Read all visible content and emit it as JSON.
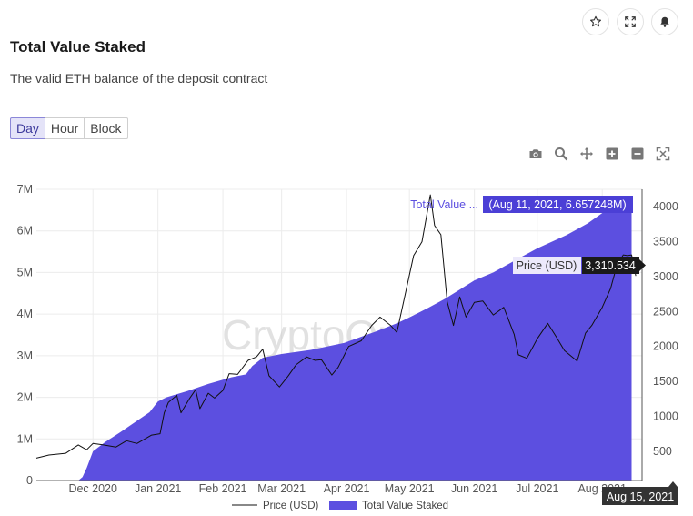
{
  "title": "Total Value Staked",
  "subtitle": "The valid ETH balance of the deposit contract",
  "resolution_tabs": [
    {
      "label": "Day",
      "active": true
    },
    {
      "label": "Hour",
      "active": false
    },
    {
      "label": "Block",
      "active": false
    }
  ],
  "top_icons": [
    "star-icon",
    "expand-icon",
    "bell-icon"
  ],
  "modebar_icons": [
    "camera-icon",
    "zoom-icon",
    "pan-icon",
    "zoom-in-icon",
    "zoom-out-icon",
    "autoscale-icon"
  ],
  "watermark": "CryptoQuant",
  "colors": {
    "area": "#5c4fe0",
    "line": "#111111",
    "accent": "#4b3fd6",
    "tooltip_dark": "#1a1a1a"
  },
  "chart_data": {
    "type": "area",
    "x_ticks": [
      "Dec 2020",
      "Jan 2021",
      "Feb 2021",
      "Mar 2021",
      "Apr 2021",
      "May 2021",
      "Jun 2021",
      "Jul 2021",
      "Aug 2021"
    ],
    "y_left": {
      "ticks": [
        "0",
        "1M",
        "2M",
        "3M",
        "4M",
        "5M",
        "6M",
        "7M"
      ],
      "range": [
        0,
        7000000
      ]
    },
    "y_right": {
      "ticks": [
        "500",
        "1000",
        "1500",
        "2000",
        "2500",
        "3000",
        "3500",
        "4000"
      ],
      "range": [
        80,
        4250
      ]
    },
    "x_range": [
      "2020-11-04",
      "2021-08-20"
    ],
    "series": [
      {
        "name": "Total Value Staked",
        "axis": "left",
        "points": [
          [
            "2020-11-04",
            0
          ],
          [
            "2020-11-24",
            0
          ],
          [
            "2020-11-26",
            80000
          ],
          [
            "2020-11-28",
            300000
          ],
          [
            "2020-12-01",
            700000
          ],
          [
            "2020-12-07",
            930000
          ],
          [
            "2020-12-14",
            1160000
          ],
          [
            "2020-12-21",
            1400000
          ],
          [
            "2020-12-28",
            1640000
          ],
          [
            "2021-01-01",
            1900000
          ],
          [
            "2021-01-05",
            2000000
          ],
          [
            "2021-01-15",
            2150000
          ],
          [
            "2021-01-25",
            2320000
          ],
          [
            "2021-02-05",
            2480000
          ],
          [
            "2021-02-12",
            2550000
          ],
          [
            "2021-02-15",
            2750000
          ],
          [
            "2021-02-20",
            2950000
          ],
          [
            "2021-03-01",
            3040000
          ],
          [
            "2021-03-15",
            3140000
          ],
          [
            "2021-03-31",
            3310000
          ],
          [
            "2021-04-15",
            3580000
          ],
          [
            "2021-04-25",
            3780000
          ],
          [
            "2021-05-01",
            3920000
          ],
          [
            "2021-05-10",
            4150000
          ],
          [
            "2021-05-18",
            4370000
          ],
          [
            "2021-05-25",
            4590000
          ],
          [
            "2021-06-01",
            4810000
          ],
          [
            "2021-06-10",
            5000000
          ],
          [
            "2021-06-20",
            5280000
          ],
          [
            "2021-07-01",
            5580000
          ],
          [
            "2021-07-15",
            5900000
          ],
          [
            "2021-07-25",
            6180000
          ],
          [
            "2021-08-01",
            6430000
          ],
          [
            "2021-08-11",
            6657248
          ],
          [
            "2021-08-15",
            6700000
          ]
        ]
      },
      {
        "name": "Price (USD)",
        "axis": "right",
        "points": [
          [
            "2020-11-04",
            400
          ],
          [
            "2020-11-10",
            445
          ],
          [
            "2020-11-18",
            470
          ],
          [
            "2020-11-24",
            590
          ],
          [
            "2020-11-28",
            520
          ],
          [
            "2020-12-01",
            610
          ],
          [
            "2020-12-06",
            590
          ],
          [
            "2020-12-12",
            560
          ],
          [
            "2020-12-17",
            650
          ],
          [
            "2020-12-22",
            610
          ],
          [
            "2020-12-29",
            730
          ],
          [
            "2021-01-02",
            750
          ],
          [
            "2021-01-04",
            1050
          ],
          [
            "2021-01-06",
            1200
          ],
          [
            "2021-01-10",
            1300
          ],
          [
            "2021-01-12",
            1050
          ],
          [
            "2021-01-16",
            1250
          ],
          [
            "2021-01-19",
            1380
          ],
          [
            "2021-01-21",
            1110
          ],
          [
            "2021-01-25",
            1330
          ],
          [
            "2021-01-28",
            1260
          ],
          [
            "2021-02-01",
            1370
          ],
          [
            "2021-02-04",
            1610
          ],
          [
            "2021-02-08",
            1600
          ],
          [
            "2021-02-13",
            1800
          ],
          [
            "2021-02-17",
            1850
          ],
          [
            "2021-02-20",
            1960
          ],
          [
            "2021-02-23",
            1580
          ],
          [
            "2021-02-28",
            1420
          ],
          [
            "2021-03-04",
            1570
          ],
          [
            "2021-03-08",
            1740
          ],
          [
            "2021-03-13",
            1850
          ],
          [
            "2021-03-17",
            1800
          ],
          [
            "2021-03-20",
            1810
          ],
          [
            "2021-03-25",
            1590
          ],
          [
            "2021-03-28",
            1700
          ],
          [
            "2021-04-02",
            2000
          ],
          [
            "2021-04-08",
            2080
          ],
          [
            "2021-04-13",
            2300
          ],
          [
            "2021-04-17",
            2420
          ],
          [
            "2021-04-22",
            2300
          ],
          [
            "2021-04-25",
            2200
          ],
          [
            "2021-04-29",
            2750
          ],
          [
            "2021-05-03",
            3300
          ],
          [
            "2021-05-07",
            3500
          ],
          [
            "2021-05-11",
            4170
          ],
          [
            "2021-05-13",
            3730
          ],
          [
            "2021-05-16",
            3600
          ],
          [
            "2021-05-19",
            2640
          ],
          [
            "2021-05-22",
            2300
          ],
          [
            "2021-05-25",
            2710
          ],
          [
            "2021-05-28",
            2420
          ],
          [
            "2021-06-01",
            2630
          ],
          [
            "2021-06-05",
            2650
          ],
          [
            "2021-06-10",
            2450
          ],
          [
            "2021-06-15",
            2560
          ],
          [
            "2021-06-20",
            2170
          ],
          [
            "2021-06-22",
            1880
          ],
          [
            "2021-06-26",
            1830
          ],
          [
            "2021-07-01",
            2110
          ],
          [
            "2021-07-06",
            2330
          ],
          [
            "2021-07-10",
            2140
          ],
          [
            "2021-07-14",
            1940
          ],
          [
            "2021-07-20",
            1790
          ],
          [
            "2021-07-24",
            2190
          ],
          [
            "2021-07-27",
            2300
          ],
          [
            "2021-08-01",
            2560
          ],
          [
            "2021-08-05",
            2830
          ],
          [
            "2021-08-08",
            3160
          ],
          [
            "2021-08-11",
            3310.534
          ],
          [
            "2021-08-13",
            3300
          ],
          [
            "2021-08-15",
            3310
          ],
          [
            "2021-08-17",
            3010
          ]
        ]
      }
    ],
    "legend": [
      "Price (USD)",
      "Total Value Staked"
    ],
    "legend_position": "bottom-center",
    "grid": true,
    "hover_date": "Aug 15, 2021",
    "tooltips": [
      {
        "series": "Total Value ...",
        "value": "(Aug 11, 2021, 6.657248M)"
      },
      {
        "series": "Price (USD)",
        "value": "3,310.534"
      }
    ]
  }
}
